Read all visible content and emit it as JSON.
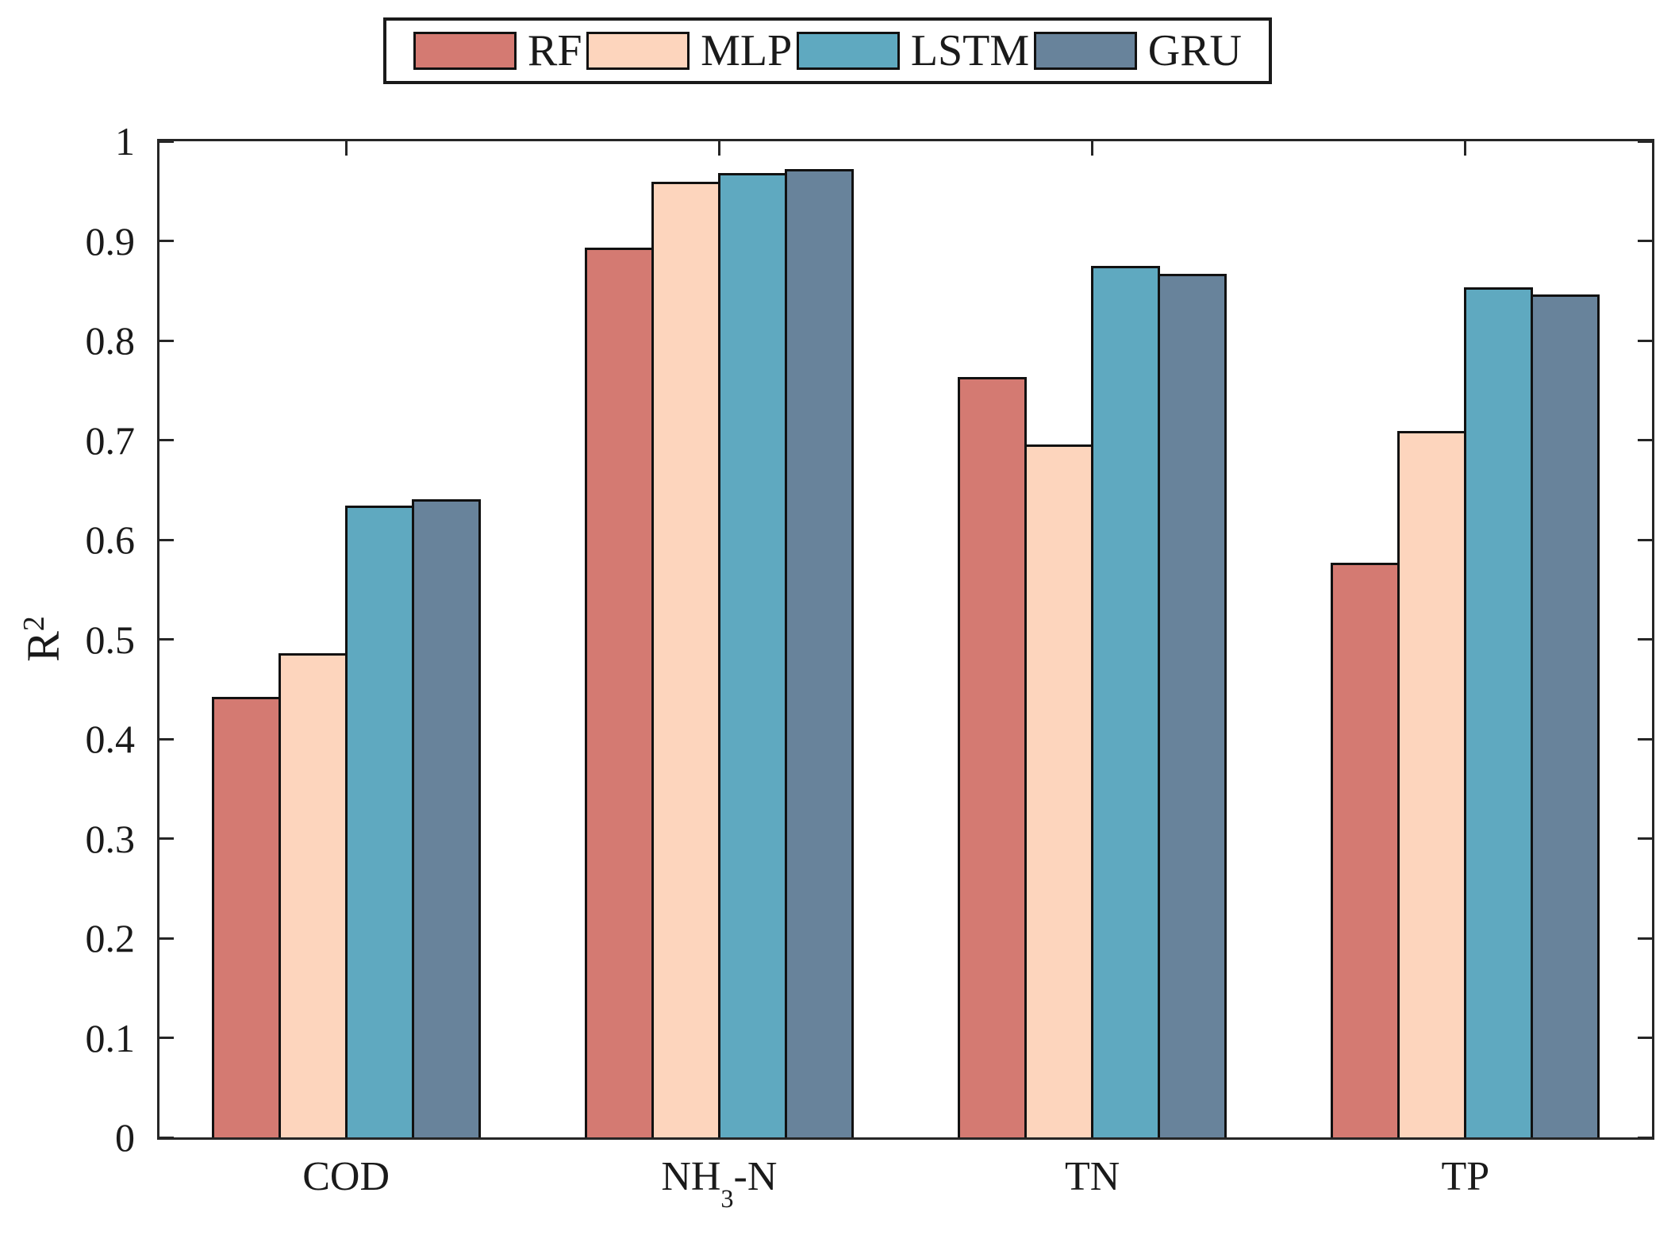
{
  "figure": {
    "background": "#ffffff",
    "axis_color": "#262626",
    "bar_edge_color": "#111111",
    "text_color": "#1a1a1a"
  },
  "ylabel": {
    "base": "R",
    "superscript": "2"
  },
  "chart_data": {
    "type": "bar",
    "title": "",
    "xlabel": "",
    "ylabel": "R^2",
    "ylim": [
      0,
      1
    ],
    "grid": false,
    "legend_position": "top-center-outside",
    "categories": [
      "COD",
      "NH3-N",
      "TN",
      "TP"
    ],
    "categories_display": [
      {
        "text": "COD"
      },
      {
        "text": "NH",
        "subscript": "3",
        "text_after": "-N"
      },
      {
        "text": "TN"
      },
      {
        "text": "TP"
      }
    ],
    "yticks": [
      0,
      0.1,
      0.2,
      0.3,
      0.4,
      0.5,
      0.6,
      0.7,
      0.8,
      0.9,
      1
    ],
    "ytick_labels": [
      "0",
      "0.1",
      "0.2",
      "0.3",
      "0.4",
      "0.5",
      "0.6",
      "0.7",
      "0.8",
      "0.9",
      "1"
    ],
    "series": [
      {
        "name": "RF",
        "color": "#D47A72",
        "values": [
          0.442,
          0.893,
          0.763,
          0.577
        ]
      },
      {
        "name": "MLP",
        "color": "#FDD5BD",
        "values": [
          0.486,
          0.959,
          0.696,
          0.709
        ]
      },
      {
        "name": "LSTM",
        "color": "#5FA9C0",
        "values": [
          0.634,
          0.968,
          0.875,
          0.853
        ]
      },
      {
        "name": "GRU",
        "color": "#68839B",
        "values": [
          0.641,
          0.972,
          0.867,
          0.846
        ]
      }
    ]
  }
}
